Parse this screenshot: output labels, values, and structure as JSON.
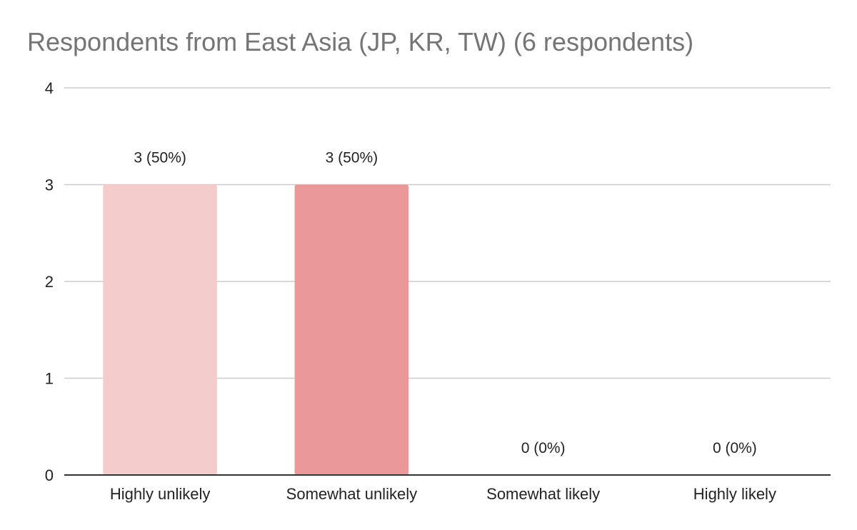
{
  "chart_data": {
    "type": "bar",
    "title": "Respondents from East Asia (JP, KR, TW) (6 respondents)",
    "xlabel": "",
    "ylabel": "",
    "categories": [
      "Highly unlikely",
      "Somewhat unlikely",
      "Somewhat likely",
      "Highly likely"
    ],
    "values": [
      3,
      3,
      0,
      0
    ],
    "data_labels": [
      "3 (50%)",
      "3 (50%)",
      "0 (0%)",
      "0 (0%)"
    ],
    "bar_colors": [
      "#f4cccc",
      "#ea9999",
      "#e06666",
      "#cc0000"
    ],
    "ylim": [
      0,
      4
    ],
    "yticks": [
      "0",
      "1",
      "2",
      "3",
      "4"
    ],
    "grid": true,
    "legend": "none"
  },
  "colors": {
    "title": "#757575",
    "gridline": "#cccccc",
    "axis": "#333333",
    "text": "#222222"
  }
}
